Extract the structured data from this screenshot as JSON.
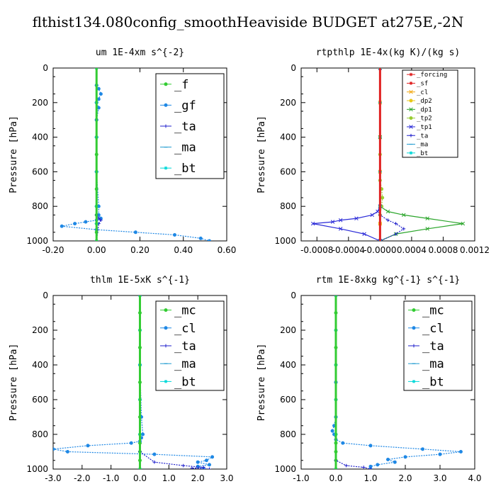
{
  "figure_title": "flthist134.080config_smoothHeaviside  BUDGET at275E,-2N",
  "chart_data": [
    {
      "type": "line",
      "title": "um  1E-4xm s^{-2}",
      "ylabel": "Pressure [hPa]",
      "xlim": [
        -0.2,
        0.6
      ],
      "ylim": [
        1000,
        0
      ],
      "xticks": [
        "-0.20",
        "0.00",
        "0.20",
        "0.40",
        "0.60"
      ],
      "xtick_values": [
        -0.2,
        0.0,
        0.2,
        0.4,
        0.6
      ],
      "yticks": [
        "0",
        "200",
        "400",
        "600",
        "800",
        "1000"
      ],
      "ytick_values": [
        0,
        200,
        400,
        600,
        800,
        1000
      ],
      "legend_position": "top-right",
      "series": [
        {
          "name": "_f",
          "color": "#33cc33",
          "marker": "o",
          "x": [
            0,
            0,
            0,
            0,
            0,
            0,
            0,
            0,
            0,
            0,
            0,
            0,
            0
          ],
          "y": [
            0,
            100,
            200,
            300,
            400,
            500,
            600,
            700,
            800,
            850,
            900,
            950,
            1000
          ]
        },
        {
          "name": "_gf",
          "color": "#1f88e5",
          "marker": "o",
          "x": [
            0,
            0.01,
            0.02,
            0.01,
            0.0,
            0.01,
            0,
            0,
            0,
            0.01,
            0.01,
            0.02,
            0.0,
            -0.05,
            -0.1,
            -0.16,
            0.0,
            0.18,
            0.36,
            0.48,
            0.52
          ],
          "y": [
            100,
            120,
            150,
            180,
            200,
            230,
            300,
            400,
            600,
            800,
            850,
            870,
            880,
            890,
            900,
            915,
            935,
            950,
            965,
            985,
            1000
          ]
        },
        {
          "name": "_ta",
          "color": "#2222cc",
          "marker": "+",
          "x": [
            0,
            0,
            0,
            0,
            0,
            0,
            0.01,
            0.02,
            0.01,
            0
          ],
          "y": [
            0,
            200,
            400,
            600,
            800,
            850,
            870,
            880,
            900,
            1000
          ]
        },
        {
          "name": "_ma",
          "color": "#1f9bd0",
          "marker": "-",
          "x": [
            0,
            0,
            0,
            0,
            0,
            0,
            0
          ],
          "y": [
            0,
            200,
            400,
            600,
            800,
            900,
            1000
          ]
        },
        {
          "name": "_bt",
          "color": "#00d8d8",
          "marker": "*",
          "x": [
            0,
            0,
            0,
            0,
            0,
            0,
            0
          ],
          "y": [
            0,
            200,
            400,
            600,
            800,
            900,
            1000
          ]
        }
      ]
    },
    {
      "type": "line",
      "title": "rtpthlp  1E-4x(kg K)/(kg s)",
      "ylabel": "Pressure [hPa]",
      "xlim": [
        -0.001,
        0.0012
      ],
      "ylim": [
        1000,
        0
      ],
      "xticks": [
        "-0.0008",
        "-0.0004",
        "-0.0000",
        "0.0004",
        "0.0008",
        "0.0012"
      ],
      "xtick_values": [
        -0.0008,
        -0.0004,
        0.0,
        0.0004,
        0.0008,
        0.0012
      ],
      "yticks": [
        "0",
        "200",
        "400",
        "600",
        "800",
        "1000"
      ],
      "ytick_values": [
        0,
        200,
        400,
        600,
        800,
        1000
      ],
      "legend_position": "top-right",
      "series": [
        {
          "name": "_forcing",
          "color": "#e02020",
          "marker": "*",
          "x": [
            0,
            0,
            0,
            0,
            0,
            0,
            0
          ],
          "y": [
            0,
            200,
            400,
            600,
            800,
            900,
            1000
          ]
        },
        {
          "name": "_sf",
          "color": "#e02020",
          "marker": "*",
          "x": [
            0,
            0,
            0,
            0,
            0,
            0,
            0
          ],
          "y": [
            0,
            200,
            400,
            600,
            800,
            900,
            1000
          ]
        },
        {
          "name": "_cl",
          "color": "#f2a60c",
          "marker": "x",
          "x": [
            0,
            0,
            0,
            0,
            0,
            0,
            0
          ],
          "y": [
            0,
            200,
            400,
            600,
            800,
            900,
            1000
          ]
        },
        {
          "name": "_dp2",
          "color": "#e8c81a",
          "marker": "o",
          "x": [
            0,
            0,
            0,
            0,
            0,
            0,
            0
          ],
          "y": [
            0,
            200,
            400,
            600,
            800,
            900,
            1000
          ]
        },
        {
          "name": "_dp1",
          "color": "#2aa52a",
          "marker": "x",
          "x": [
            0,
            0,
            0,
            0.0001,
            0.0003,
            0.0006,
            0.00105,
            0.0006,
            0.0002,
            0
          ],
          "y": [
            0,
            400,
            800,
            830,
            850,
            870,
            900,
            930,
            960,
            1000
          ]
        },
        {
          "name": "_tp2",
          "color": "#99cc33",
          "marker": "o",
          "x": [
            0,
            0,
            0,
            2e-05,
            3e-05,
            2e-05,
            0,
            0
          ],
          "y": [
            0,
            500,
            650,
            700,
            750,
            800,
            850,
            1000
          ]
        },
        {
          "name": "_tp1",
          "color": "#2a2ad8",
          "marker": "x",
          "x": [
            0,
            0,
            -3e-05,
            -0.0001,
            -0.0003,
            -0.0005,
            -0.0006,
            -0.00085,
            -0.0005,
            -0.0002,
            0
          ],
          "y": [
            0,
            800,
            830,
            850,
            870,
            880,
            890,
            900,
            930,
            960,
            1000
          ]
        },
        {
          "name": "_ta",
          "color": "#2222cc",
          "marker": "+",
          "x": [
            0,
            0,
            0.0001,
            0.0002,
            0.0003,
            0.0002,
            0
          ],
          "y": [
            0,
            850,
            880,
            900,
            930,
            960,
            1000
          ]
        },
        {
          "name": "_ma",
          "color": "#1f9bd0",
          "marker": "-",
          "x": [
            0,
            0,
            0,
            0,
            0,
            0
          ],
          "y": [
            0,
            200,
            400,
            600,
            800,
            1000
          ]
        },
        {
          "name": "_bt",
          "color": "#00d8d8",
          "marker": "*",
          "x": [
            0,
            0,
            0,
            0,
            0,
            0
          ],
          "y": [
            0,
            200,
            400,
            600,
            800,
            1000
          ]
        }
      ]
    },
    {
      "type": "line",
      "title": "thlm  1E-5xK s^{-1}",
      "ylabel": "Pressure [hPa]",
      "xlim": [
        -3.0,
        3.0
      ],
      "ylim": [
        1000,
        0
      ],
      "xticks": [
        "-3.0",
        "-2.0",
        "-1.0",
        "0.0",
        "1.0",
        "2.0",
        "3.0"
      ],
      "xtick_values": [
        -3.0,
        -2.0,
        -1.0,
        0.0,
        1.0,
        2.0,
        3.0
      ],
      "yticks": [
        "0",
        "200",
        "400",
        "600",
        "800",
        "1000"
      ],
      "ytick_values": [
        0,
        200,
        400,
        600,
        800,
        1000
      ],
      "legend_position": "top-right",
      "series": [
        {
          "name": "_mc",
          "color": "#33cc33",
          "marker": "o",
          "x": [
            0,
            0,
            0,
            0,
            0,
            0,
            0,
            0,
            0,
            0,
            0,
            0,
            0
          ],
          "y": [
            0,
            100,
            200,
            300,
            400,
            500,
            600,
            700,
            800,
            850,
            900,
            950,
            1000
          ]
        },
        {
          "name": "_cl",
          "color": "#1f88e5",
          "marker": "o",
          "x": [
            0,
            0,
            0.05,
            0.1,
            0.05,
            0,
            -0.3,
            -1.8,
            -3.0,
            -2.5,
            0.5,
            2.5,
            2.3,
            2.0,
            2.4,
            2.0,
            2.2
          ],
          "y": [
            0,
            400,
            700,
            800,
            820,
            840,
            850,
            865,
            885,
            900,
            915,
            930,
            950,
            960,
            975,
            985,
            1000
          ]
        },
        {
          "name": "_ta",
          "color": "#2222cc",
          "marker": "+",
          "x": [
            0,
            0,
            0,
            0.5,
            1.5,
            2.2,
            1.8,
            2.4
          ],
          "y": [
            0,
            800,
            900,
            960,
            980,
            990,
            995,
            1000
          ]
        },
        {
          "name": "_ma",
          "color": "#1f9bd0",
          "marker": "-",
          "x": [
            0,
            0,
            0,
            0,
            0,
            0
          ],
          "y": [
            0,
            200,
            400,
            600,
            800,
            1000
          ]
        },
        {
          "name": "_bt",
          "color": "#00d8d8",
          "marker": "*",
          "x": [
            0,
            0,
            0,
            0,
            0,
            0
          ],
          "y": [
            0,
            200,
            400,
            600,
            800,
            1000
          ]
        }
      ]
    },
    {
      "type": "line",
      "title": "rtm  1E-8xkg kg^{-1} s^{-1}",
      "ylabel": "Pressure [hPa]",
      "xlim": [
        -1.0,
        4.0
      ],
      "ylim": [
        1000,
        0
      ],
      "xticks": [
        "-1.0",
        "0.0",
        "1.0",
        "2.0",
        "3.0",
        "4.0"
      ],
      "xtick_values": [
        -1.0,
        0.0,
        1.0,
        2.0,
        3.0,
        4.0
      ],
      "yticks": [
        "0",
        "200",
        "400",
        "600",
        "800",
        "1000"
      ],
      "ytick_values": [
        0,
        200,
        400,
        600,
        800,
        1000
      ],
      "legend_position": "top-right",
      "series": [
        {
          "name": "_mc",
          "color": "#33cc33",
          "marker": "o",
          "x": [
            0,
            0,
            0,
            0,
            0,
            0,
            0,
            0,
            0,
            0,
            0,
            0,
            0
          ],
          "y": [
            0,
            100,
            200,
            300,
            400,
            500,
            600,
            700,
            800,
            850,
            900,
            950,
            1000
          ]
        },
        {
          "name": "_cl",
          "color": "#1f88e5",
          "marker": "o",
          "x": [
            0,
            0,
            0,
            -0.05,
            -0.1,
            -0.05,
            0,
            0.2,
            1.0,
            2.5,
            3.6,
            3.0,
            2.0,
            1.5,
            1.7,
            1.2,
            1.0,
            1.0
          ],
          "y": [
            0,
            500,
            700,
            750,
            780,
            800,
            830,
            850,
            865,
            885,
            900,
            915,
            930,
            945,
            960,
            975,
            985,
            1000
          ]
        },
        {
          "name": "_ta",
          "color": "#2222cc",
          "marker": "+",
          "x": [
            0,
            0,
            0,
            0.3,
            0.8,
            1.0
          ],
          "y": [
            0,
            800,
            950,
            980,
            990,
            1000
          ]
        },
        {
          "name": "_ma",
          "color": "#1f9bd0",
          "marker": "-",
          "x": [
            0,
            0,
            0,
            0,
            0,
            0
          ],
          "y": [
            0,
            200,
            400,
            600,
            800,
            1000
          ]
        },
        {
          "name": "_bt",
          "color": "#00d8d8",
          "marker": "*",
          "x": [
            0,
            0,
            0,
            0,
            0,
            0
          ],
          "y": [
            0,
            200,
            400,
            600,
            800,
            1000
          ]
        }
      ]
    }
  ]
}
